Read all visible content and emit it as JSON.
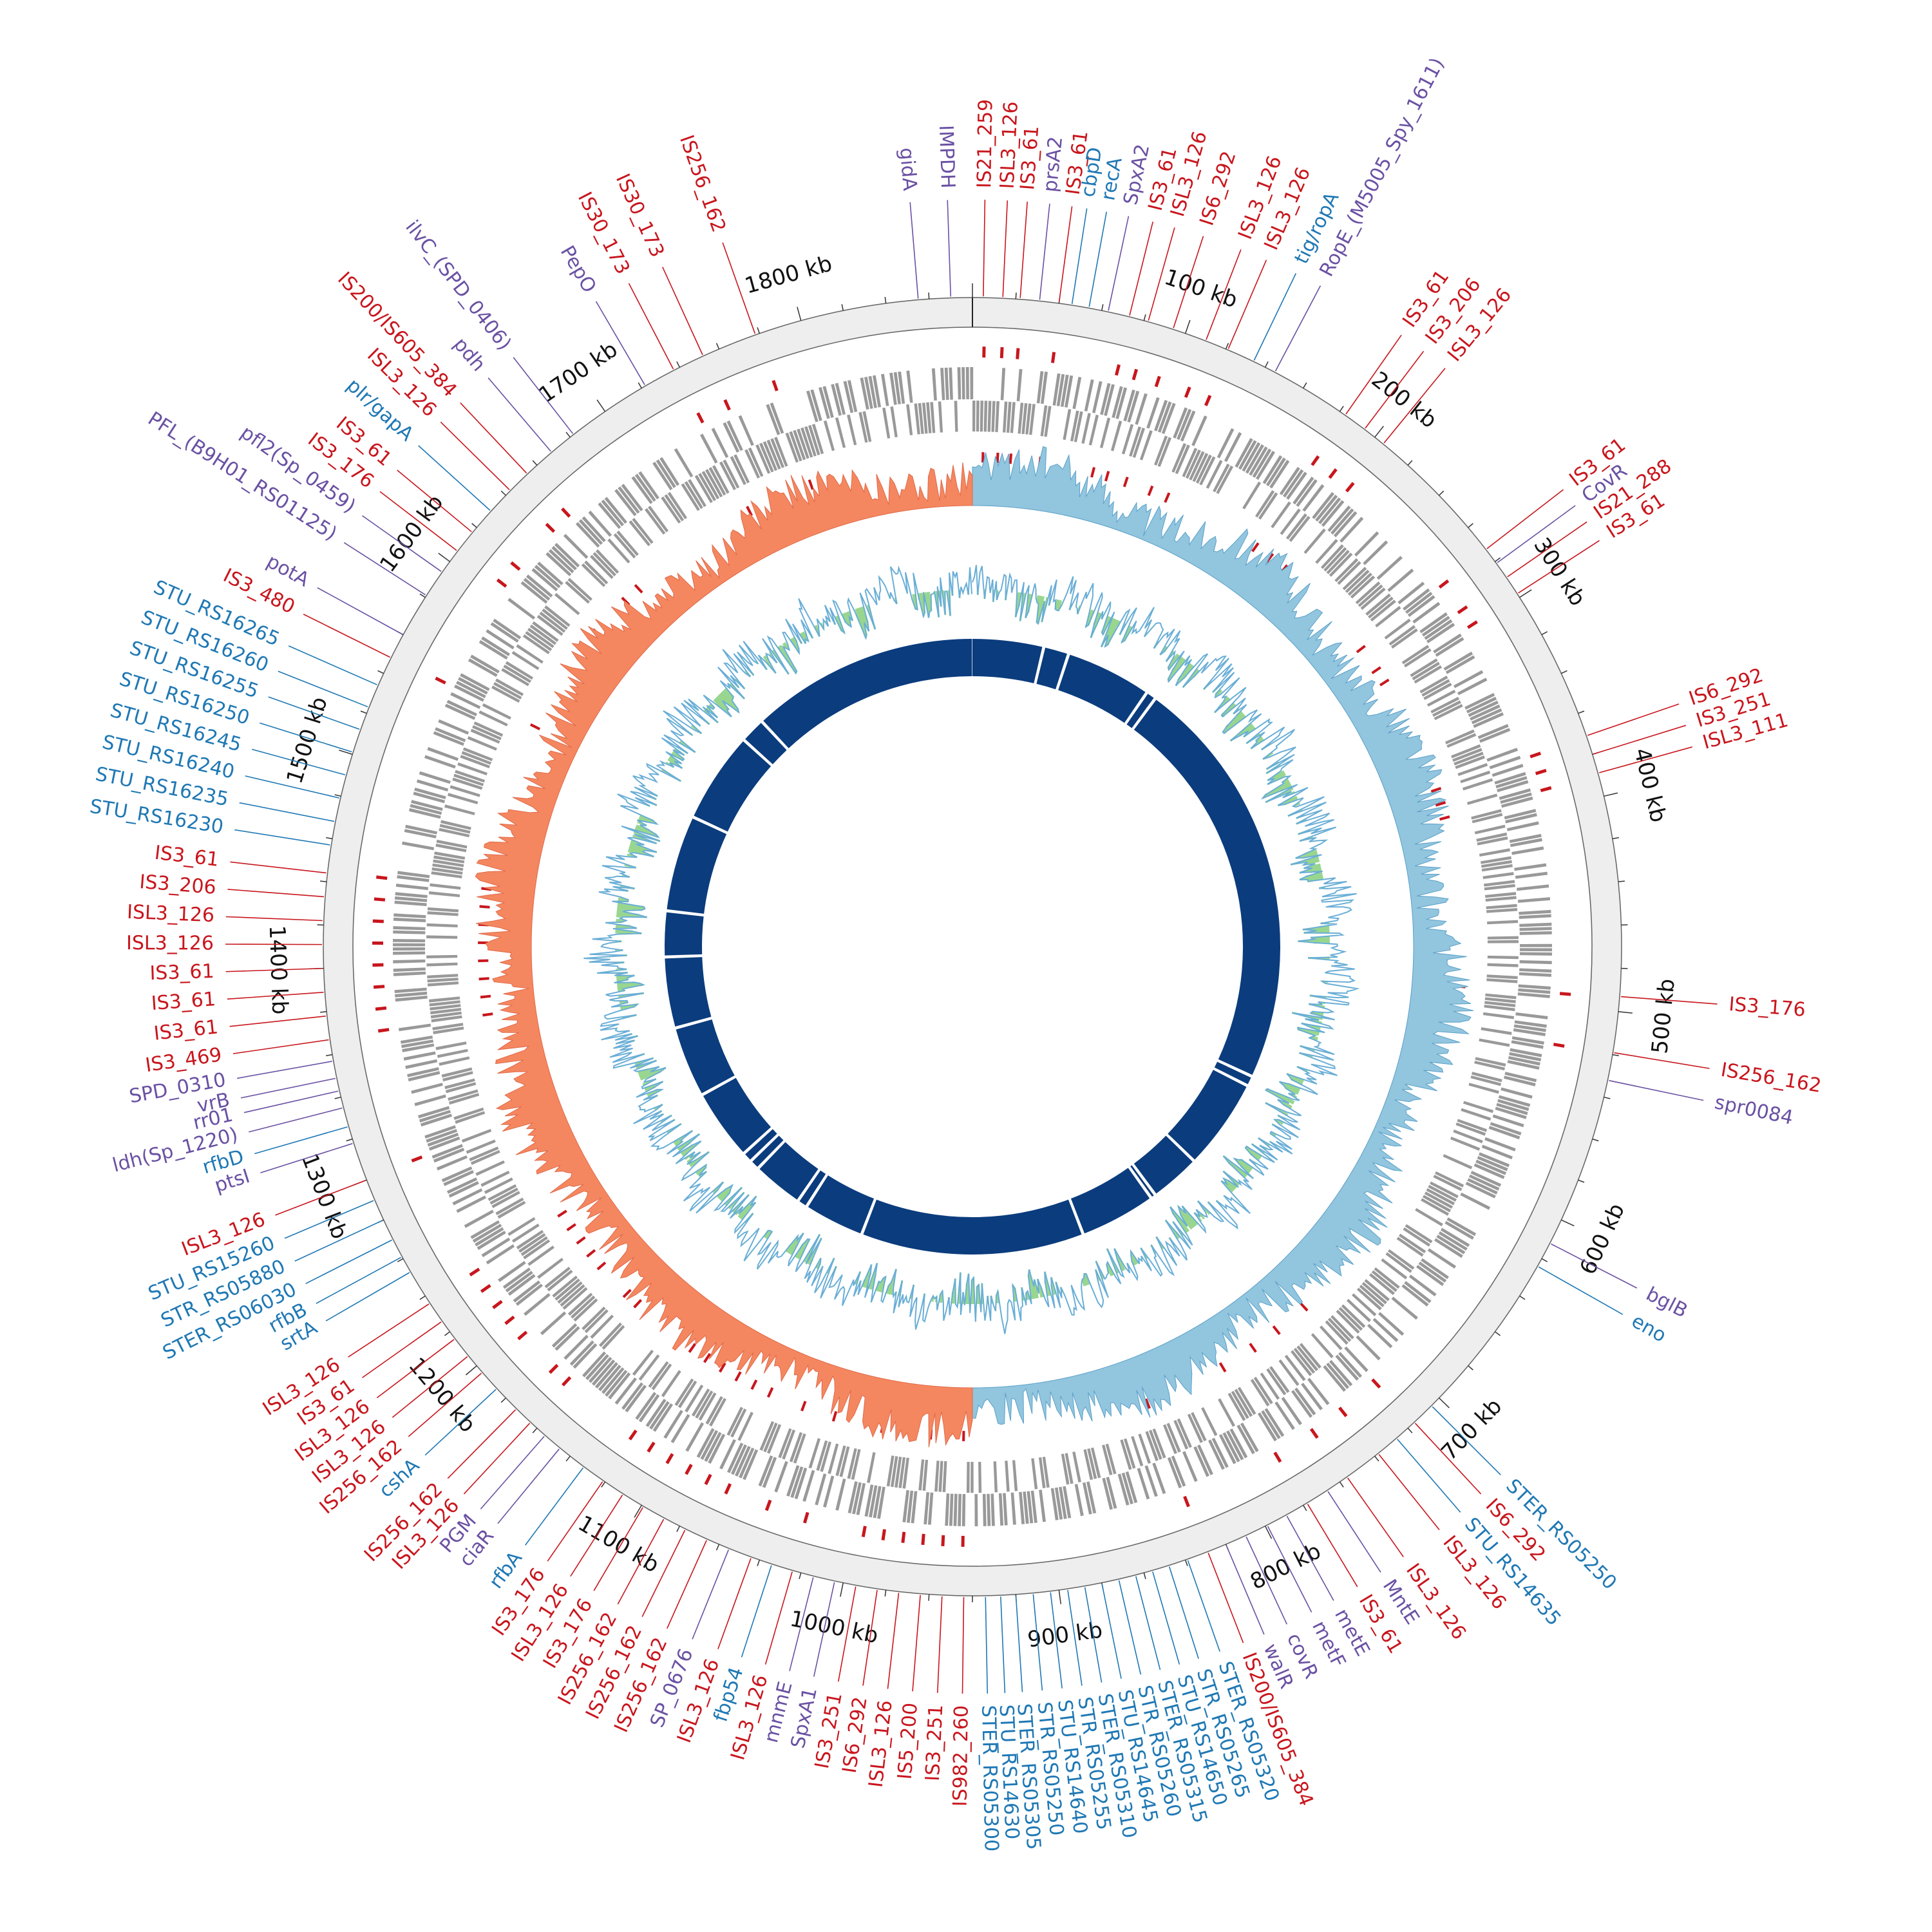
{
  "genome": {
    "size_kb": 1880,
    "tick_labels": [
      {
        "kb": 100,
        "label": "100 kb"
      },
      {
        "kb": 200,
        "label": "200 kb"
      },
      {
        "kb": 300,
        "label": "300 kb"
      },
      {
        "kb": 400,
        "label": "400 kb"
      },
      {
        "kb": 500,
        "label": "500 kb"
      },
      {
        "kb": 600,
        "label": "600 kb"
      },
      {
        "kb": 700,
        "label": "700 kb"
      },
      {
        "kb": 800,
        "label": "800 kb"
      },
      {
        "kb": 900,
        "label": "900 kb"
      },
      {
        "kb": 1000,
        "label": "1000 kb"
      },
      {
        "kb": 1100,
        "label": "1100 kb"
      },
      {
        "kb": 1200,
        "label": "1200 kb"
      },
      {
        "kb": 1300,
        "label": "1300 kb"
      },
      {
        "kb": 1400,
        "label": "1400 kb"
      },
      {
        "kb": 1500,
        "label": "1500 kb"
      },
      {
        "kb": 1600,
        "label": "1600 kb"
      },
      {
        "kb": 1700,
        "label": "1700 kb"
      },
      {
        "kb": 1800,
        "label": "1800 kb"
      }
    ]
  },
  "colors": {
    "is_element": "#c8161d",
    "stress_gene": "#1f78b4",
    "virulence_gene": "#6a51a3",
    "backbone_ring": "#eeeeee",
    "cds": "#999999",
    "gc_skew_pos": "#92c5de",
    "gc_skew_neg": "#f4875f",
    "gc_content_pos": "#92c5de",
    "gc_content_neg": "#98d68f",
    "synteny": "#0b3c7d"
  },
  "synteny_gaps_kb": [
    70,
    95,
    180,
    190,
    600,
    610,
    700,
    750,
    755,
    830,
    1050,
    1110,
    1120,
    1170,
    1180,
    1190,
    1260,
    1330,
    1400,
    1445,
    1540,
    1630,
    1655
  ],
  "features": [
    {
      "label": "gidA",
      "kb": 1855,
      "cat": "virulence"
    },
    {
      "label": "IMPDH",
      "kb": 1870,
      "cat": "virulence"
    },
    {
      "label": "IS21_259",
      "kb": 5,
      "cat": "is"
    },
    {
      "label": "ISL3_126",
      "kb": 14,
      "cat": "is"
    },
    {
      "label": "IS3_61",
      "kb": 22,
      "cat": "is"
    },
    {
      "label": "prsA2",
      "kb": 31,
      "cat": "virulence"
    },
    {
      "label": "IS3_61",
      "kb": 40,
      "cat": "is"
    },
    {
      "label": "cbpD",
      "kb": 46,
      "cat": "stress"
    },
    {
      "label": "recA",
      "kb": 54,
      "cat": "stress"
    },
    {
      "label": "SpxA2",
      "kb": 63,
      "cat": "virulence"
    },
    {
      "label": "IS3_61",
      "kb": 73,
      "cat": "is"
    },
    {
      "label": "ISL3_126",
      "kb": 82,
      "cat": "is"
    },
    {
      "label": "IS6_292",
      "kb": 94,
      "cat": "is"
    },
    {
      "label": "ISL3_126",
      "kb": 110,
      "cat": "is"
    },
    {
      "label": "ISL3_126",
      "kb": 121,
      "cat": "is"
    },
    {
      "label": "tig/ropA",
      "kb": 134,
      "cat": "stress"
    },
    {
      "label": "RopE_(M5005_Spy_1611)",
      "kb": 145,
      "cat": "virulence"
    },
    {
      "label": "IS3_61",
      "kb": 183,
      "cat": "is"
    },
    {
      "label": "IS3_206",
      "kb": 194,
      "cat": "is"
    },
    {
      "label": "ISL3_126",
      "kb": 205,
      "cat": "is"
    },
    {
      "label": "IS3_61",
      "kb": 273,
      "cat": "is"
    },
    {
      "label": "CovR",
      "kb": 281,
      "cat": "virulence"
    },
    {
      "label": "IS21_288",
      "kb": 289,
      "cat": "is"
    },
    {
      "label": "IS3_61",
      "kb": 298,
      "cat": "is"
    },
    {
      "label": "IS6_292",
      "kb": 371,
      "cat": "is"
    },
    {
      "label": "IS3_251",
      "kb": 380,
      "cat": "is"
    },
    {
      "label": "ISL3_111",
      "kb": 389,
      "cat": "is"
    },
    {
      "label": "IS3_176",
      "kb": 493,
      "cat": "is"
    },
    {
      "label": "IS256_162",
      "kb": 519,
      "cat": "is"
    },
    {
      "label": "spr0084",
      "kb": 532,
      "cat": "virulence"
    },
    {
      "label": "bglB",
      "kb": 612,
      "cat": "virulence"
    },
    {
      "label": "eno",
      "kb": 624,
      "cat": "stress"
    },
    {
      "label": "STER_RS05250",
      "kb": 705,
      "cat": "stress"
    },
    {
      "label": "IS6_292",
      "kb": 716,
      "cat": "is"
    },
    {
      "label": "STU_RS14635",
      "kb": 727,
      "cat": "stress"
    },
    {
      "label": "ISL3_126",
      "kb": 738,
      "cat": "is"
    },
    {
      "label": "ISL3_126",
      "kb": 756,
      "cat": "is"
    },
    {
      "label": "MntE",
      "kb": 767,
      "cat": "virulence"
    },
    {
      "label": "IS3_61",
      "kb": 778,
      "cat": "is"
    },
    {
      "label": "metE",
      "kb": 789,
      "cat": "virulence"
    },
    {
      "label": "metF",
      "kb": 799,
      "cat": "virulence"
    },
    {
      "label": "covR",
      "kb": 810,
      "cat": "virulence"
    },
    {
      "label": "walR",
      "kb": 820,
      "cat": "virulence"
    },
    {
      "label": "IS200/IS605_384",
      "kb": 829,
      "cat": "is"
    },
    {
      "label": "STER_RS05320",
      "kb": 839,
      "cat": "stress"
    },
    {
      "label": "STR_RS05265",
      "kb": 848,
      "cat": "stress"
    },
    {
      "label": "STU_RS14650",
      "kb": 856,
      "cat": "stress"
    },
    {
      "label": "STER_RS05315",
      "kb": 864,
      "cat": "stress"
    },
    {
      "label": "STR_RS05260",
      "kb": 872,
      "cat": "stress"
    },
    {
      "label": "STU_RS14645",
      "kb": 880,
      "cat": "stress"
    },
    {
      "label": "STER_RS05310",
      "kb": 888,
      "cat": "stress"
    },
    {
      "label": "STR_RS05255",
      "kb": 896,
      "cat": "stress"
    },
    {
      "label": "STU_RS14640",
      "kb": 904,
      "cat": "stress"
    },
    {
      "label": "STR_RS05250",
      "kb": 912,
      "cat": "stress"
    },
    {
      "label": "STER_RS05305",
      "kb": 920,
      "cat": "stress"
    },
    {
      "label": "STU_RS14630",
      "kb": 927,
      "cat": "stress"
    },
    {
      "label": "STER_RS05300",
      "kb": 934,
      "cat": "stress"
    },
    {
      "label": "IS982_260",
      "kb": 944,
      "cat": "is"
    },
    {
      "label": "IS3_251",
      "kb": 954,
      "cat": "is"
    },
    {
      "label": "IS5_200",
      "kb": 964,
      "cat": "is"
    },
    {
      "label": "ISL3_126",
      "kb": 974,
      "cat": "is"
    },
    {
      "label": "IS6_292",
      "kb": 984,
      "cat": "is"
    },
    {
      "label": "IS3_251",
      "kb": 994,
      "cat": "is"
    },
    {
      "label": "SpxA1",
      "kb": 1004,
      "cat": "virulence"
    },
    {
      "label": "mnmE",
      "kb": 1014,
      "cat": "virulence"
    },
    {
      "label": "ISL3_126",
      "kb": 1024,
      "cat": "is"
    },
    {
      "label": "fbp54",
      "kb": 1034,
      "cat": "stress"
    },
    {
      "label": "ISL3_126",
      "kb": 1044,
      "cat": "is"
    },
    {
      "label": "SP_0676",
      "kb": 1055,
      "cat": "virulence"
    },
    {
      "label": "IS256_162",
      "kb": 1066,
      "cat": "is"
    },
    {
      "label": "IS256_162",
      "kb": 1077,
      "cat": "is"
    },
    {
      "label": "IS256_162",
      "kb": 1088,
      "cat": "is"
    },
    {
      "label": "IS3_176",
      "kb": 1099,
      "cat": "is"
    },
    {
      "label": "ISL3_126",
      "kb": 1110,
      "cat": "is"
    },
    {
      "label": "IS3_176",
      "kb": 1121,
      "cat": "is"
    },
    {
      "label": "rfbA",
      "kb": 1132,
      "cat": "stress"
    },
    {
      "label": "ciaR",
      "kb": 1146,
      "cat": "virulence"
    },
    {
      "label": "PGM",
      "kb": 1155,
      "cat": "virulence"
    },
    {
      "label": "ISL3_126",
      "kb": 1164,
      "cat": "is"
    },
    {
      "label": "IS256_162",
      "kb": 1173,
      "cat": "is"
    },
    {
      "label": "cshA",
      "kb": 1186,
      "cat": "stress"
    },
    {
      "label": "IS256_162",
      "kb": 1196,
      "cat": "is"
    },
    {
      "label": "ISL3_126",
      "kb": 1206,
      "cat": "is"
    },
    {
      "label": "ISL3_126",
      "kb": 1216,
      "cat": "is"
    },
    {
      "label": "IS3_61",
      "kb": 1226,
      "cat": "is"
    },
    {
      "label": "ISL3_126",
      "kb": 1236,
      "cat": "is"
    },
    {
      "label": "srtA",
      "kb": 1253,
      "cat": "stress"
    },
    {
      "label": "rfbB",
      "kb": 1261,
      "cat": "stress"
    },
    {
      "label": "STER_RS06030",
      "kb": 1270,
      "cat": "stress"
    },
    {
      "label": "STR_RS05880",
      "kb": 1280,
      "cat": "stress"
    },
    {
      "label": "STU_RS15260",
      "kb": 1290,
      "cat": "stress"
    },
    {
      "label": "ISL3_126",
      "kb": 1300,
      "cat": "is"
    },
    {
      "label": "ptsI",
      "kb": 1318,
      "cat": "virulence"
    },
    {
      "label": "rfbD",
      "kb": 1326,
      "cat": "stress"
    },
    {
      "label": "ldh(Sp_1220)",
      "kb": 1335,
      "cat": "virulence"
    },
    {
      "label": "rr01",
      "kb": 1343,
      "cat": "virulence"
    },
    {
      "label": "vrB",
      "kb": 1349,
      "cat": "virulence"
    },
    {
      "label": "SPD_0310",
      "kb": 1357,
      "cat": "virulence"
    },
    {
      "label": "IS3_469",
      "kb": 1367,
      "cat": "is"
    },
    {
      "label": "IS3_61",
      "kb": 1378,
      "cat": "is"
    },
    {
      "label": "IS3_61",
      "kb": 1389,
      "cat": "is"
    },
    {
      "label": "IS3_61",
      "kb": 1400,
      "cat": "is"
    },
    {
      "label": "ISL3_126",
      "kb": 1411,
      "cat": "is"
    },
    {
      "label": "ISL3_126",
      "kb": 1422,
      "cat": "is"
    },
    {
      "label": "IS3_206",
      "kb": 1433,
      "cat": "is"
    },
    {
      "label": "IS3_61",
      "kb": 1444,
      "cat": "is"
    },
    {
      "label": "STU_RS16230",
      "kb": 1457,
      "cat": "stress"
    },
    {
      "label": "STU_RS16235",
      "kb": 1468,
      "cat": "stress"
    },
    {
      "label": "STU_RS16240",
      "kb": 1479,
      "cat": "stress"
    },
    {
      "label": "STU_RS16245",
      "kb": 1490,
      "cat": "stress"
    },
    {
      "label": "STU_RS16250",
      "kb": 1501,
      "cat": "stress"
    },
    {
      "label": "STU_RS16255",
      "kb": 1512,
      "cat": "stress"
    },
    {
      "label": "STU_RS16260",
      "kb": 1523,
      "cat": "stress"
    },
    {
      "label": "STU_RS16265",
      "kb": 1534,
      "cat": "stress"
    },
    {
      "label": "IS3_480",
      "kb": 1548,
      "cat": "is"
    },
    {
      "label": "potA",
      "kb": 1560,
      "cat": "virulence"
    },
    {
      "label": "PFL_(B9H01_RS01125)",
      "kb": 1581,
      "cat": "virulence"
    },
    {
      "label": "pfl2(Sp_0459)",
      "kb": 1594,
      "cat": "virulence"
    },
    {
      "label": "IS3_176",
      "kb": 1606,
      "cat": "is"
    },
    {
      "label": "IS3_61",
      "kb": 1617,
      "cat": "is"
    },
    {
      "label": "plr/gapA",
      "kb": 1630,
      "cat": "stress"
    },
    {
      "label": "ISL3_126",
      "kb": 1643,
      "cat": "is"
    },
    {
      "label": "IS200/IS605_384",
      "kb": 1654,
      "cat": "is"
    },
    {
      "label": "pdh",
      "kb": 1669,
      "cat": "virulence"
    },
    {
      "label": "ilvC_(SPD_0406)",
      "kb": 1682,
      "cat": "virulence"
    },
    {
      "label": "PepO",
      "kb": 1722,
      "cat": "virulence"
    },
    {
      "label": "IS30_173",
      "kb": 1737,
      "cat": "is"
    },
    {
      "label": "IS30_173",
      "kb": 1752,
      "cat": "is"
    },
    {
      "label": "IS256_162",
      "kb": 1778,
      "cat": "is"
    }
  ]
}
